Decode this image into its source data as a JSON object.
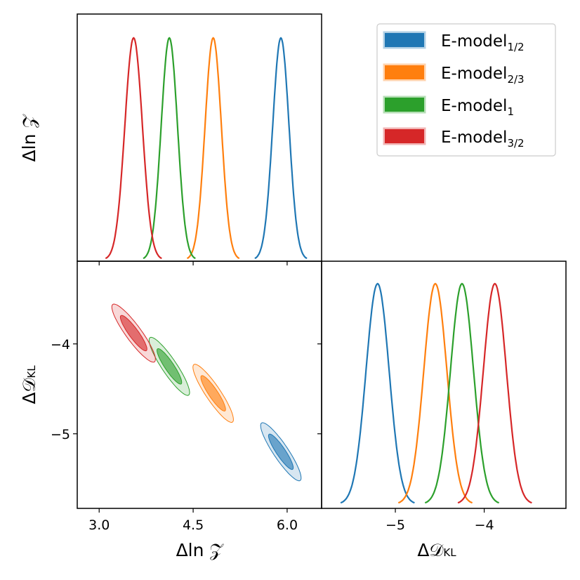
{
  "chart_data": {
    "type": "corner-plot",
    "parameters": [
      {
        "id": "dlnZ",
        "label": "Δln 𝒵",
        "range": [
          2.65,
          6.55
        ],
        "ticks": [
          3.0,
          4.5,
          6.0
        ],
        "tick_labels": [
          "3.0",
          "4.5",
          "6.0"
        ]
      },
      {
        "id": "dDKL",
        "label": "Δ𝒟",
        "label_sub": "KL",
        "range": [
          -5.83,
          -3.08
        ],
        "ticks": [
          -5,
          -4
        ],
        "tick_labels": [
          "−5",
          "−4"
        ]
      }
    ],
    "left_ylabel_top": "Δln 𝒵",
    "left_ylabel_bottom": "Δ𝒟",
    "left_ylabel_bottom_sub": "KL",
    "series": [
      {
        "name": "E-model",
        "sub": "1/2",
        "color": "#1f77b4",
        "mean_dlnZ": 5.9,
        "sd_dlnZ": 0.13,
        "mean_dDKL": -5.2,
        "sd_dDKL": 0.13,
        "correlation": -0.9
      },
      {
        "name": "E-model",
        "sub": "2/3",
        "color": "#ff7f0e",
        "mean_dlnZ": 4.82,
        "sd_dlnZ": 0.13,
        "mean_dDKL": -4.55,
        "sd_dDKL": 0.13,
        "correlation": -0.9
      },
      {
        "name": "E-model",
        "sub": "1",
        "color": "#2ca02c",
        "mean_dlnZ": 4.12,
        "sd_dlnZ": 0.13,
        "mean_dDKL": -4.25,
        "sd_dDKL": 0.13,
        "correlation": -0.9
      },
      {
        "name": "E-model",
        "sub": "3/2",
        "color": "#d62728",
        "mean_dlnZ": 3.55,
        "sd_dlnZ": 0.14,
        "mean_dDKL": -3.88,
        "sd_dDKL": 0.13,
        "correlation": -0.9
      }
    ],
    "legend_position": "top-right",
    "contour_levels": [
      "68%",
      "95%"
    ]
  }
}
